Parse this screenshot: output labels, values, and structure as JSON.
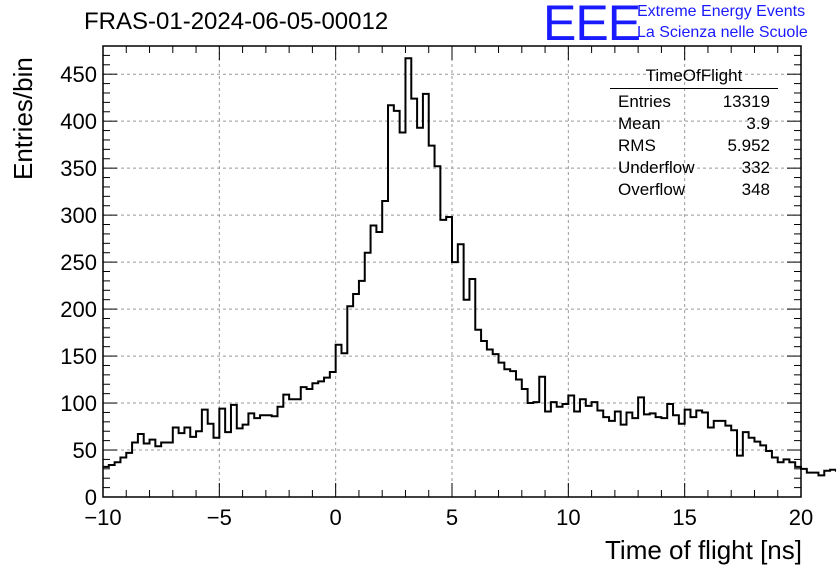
{
  "header": {
    "title": "FRAS-01-2024-06-05-00012",
    "logo_text": "EEE",
    "logo_line1": "Extreme Energy Events",
    "logo_line2": "La Scienza nelle Scuole",
    "logo_color": "#1a1aff"
  },
  "stats_box": {
    "title": "TimeOfFlight",
    "rows": [
      {
        "label": "Entries",
        "value": "13319"
      },
      {
        "label": "Mean",
        "value": "3.9"
      },
      {
        "label": "RMS",
        "value": "5.952"
      },
      {
        "label": "Underflow",
        "value": "332"
      },
      {
        "label": "Overflow",
        "value": "348"
      }
    ]
  },
  "chart_data": {
    "type": "bar",
    "style": "step-histogram",
    "xlabel": "Time of flight [ns]",
    "ylabel": "Entries/bin",
    "xlim": [
      -10,
      20
    ],
    "ylim": [
      0,
      480
    ],
    "grid": true,
    "x_ticks": [
      -10,
      -5,
      0,
      5,
      10,
      15,
      20
    ],
    "x_tick_labels": [
      "−10",
      "−5",
      "0",
      "5",
      "10",
      "15",
      "20"
    ],
    "y_ticks": [
      0,
      50,
      100,
      150,
      200,
      250,
      300,
      350,
      400,
      450
    ],
    "y_tick_labels": [
      "0",
      "50",
      "100",
      "150",
      "200",
      "250",
      "300",
      "350",
      "400",
      "450"
    ],
    "bin_width": 0.25,
    "bin_start": -10,
    "values": [
      32,
      34,
      37,
      42,
      47,
      58,
      67,
      57,
      61,
      54,
      58,
      58,
      74,
      68,
      74,
      64,
      70,
      93,
      78,
      63,
      94,
      69,
      98,
      73,
      77,
      89,
      84,
      87,
      87,
      86,
      96,
      109,
      104,
      104,
      117,
      115,
      121,
      123,
      127,
      133,
      162,
      153,
      203,
      216,
      230,
      260,
      289,
      282,
      315,
      417,
      411,
      388,
      467,
      424,
      393,
      429,
      374,
      352,
      295,
      298,
      250,
      269,
      210,
      232,
      178,
      166,
      157,
      152,
      143,
      136,
      134,
      125,
      115,
      100,
      101,
      128,
      91,
      101,
      96,
      99,
      108,
      91,
      104,
      97,
      101,
      92,
      85,
      81,
      91,
      77,
      90,
      84,
      106,
      88,
      89,
      85,
      84,
      99,
      87,
      78,
      93,
      85,
      92,
      90,
      74,
      81,
      81,
      76,
      71,
      44,
      69,
      63,
      59,
      55,
      49,
      42,
      37,
      40,
      37,
      32,
      30,
      26,
      26,
      23,
      28,
      29,
      28
    ]
  }
}
